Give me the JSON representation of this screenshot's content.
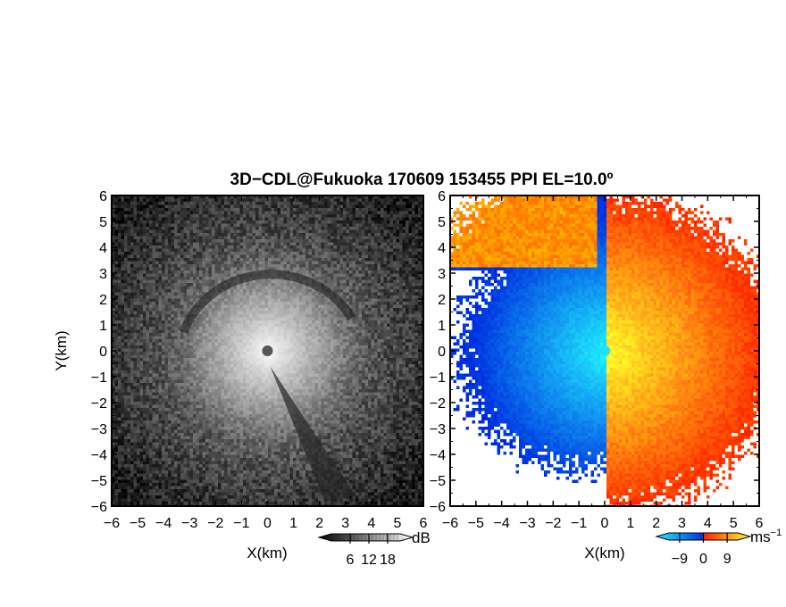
{
  "title": "3D−CDL@Fukuoka 170609 153455 PPI EL=10.0º",
  "chart_data": [
    {
      "type": "heatmap",
      "panel": "left",
      "field": "signal intensity (grayscale)",
      "xlabel": "X(km)",
      "ylabel": "Y(km)",
      "xlim": [
        -6,
        6
      ],
      "ylim": [
        -6,
        6
      ],
      "xticks": [
        "−6",
        "−5",
        "−4",
        "−3",
        "−2",
        "−1",
        "0",
        "1",
        "2",
        "3",
        "4",
        "5",
        "6"
      ],
      "yticks": [
        "−6",
        "−5",
        "−4",
        "−3",
        "−2",
        "−1",
        "0",
        "1",
        "2",
        "3",
        "4",
        "5",
        "6"
      ],
      "colorbar": {
        "unit": "dB",
        "ticks": [
          "6",
          "12",
          "18"
        ],
        "tick_values": [
          6,
          12,
          18
        ],
        "range": [
          0,
          22
        ],
        "colors": [
          "#000000",
          "#ffffff"
        ]
      },
      "features": {
        "center": [
          0,
          0
        ],
        "bright_core_radius_km": 3.0,
        "dark_ring_radius_km": 3.6,
        "shadow_from_km": [
          0.1,
          -0.6
        ],
        "shadow_to_km": [
          2.8,
          -5.8
        ]
      }
    },
    {
      "type": "heatmap",
      "panel": "right",
      "field": "Doppler radial velocity",
      "xlabel": "X(km)",
      "xlim": [
        -6,
        6
      ],
      "ylim": [
        -6,
        6
      ],
      "xticks": [
        "−6",
        "−5",
        "−4",
        "−3",
        "−2",
        "−1",
        "0",
        "1",
        "2",
        "3",
        "4",
        "5",
        "6"
      ],
      "yticks": [
        "−6",
        "−5",
        "−4",
        "−3",
        "−2",
        "−1",
        "0",
        "1",
        "2",
        "3",
        "4",
        "5",
        "6"
      ],
      "colorbar": {
        "unit": "ms",
        "unit_exponent": "−1",
        "ticks": [
          "−9",
          "0",
          "9"
        ],
        "tick_values": [
          -9,
          0,
          9
        ],
        "range": [
          -13,
          13
        ],
        "colors": [
          "#20f0ff",
          "#0030e0",
          "#ff2000",
          "#ffff30"
        ]
      },
      "features": {
        "negative_side": "west",
        "positive_side": "east",
        "zero_line_x_km": 0,
        "center_color": "#20e0ff"
      }
    }
  ]
}
